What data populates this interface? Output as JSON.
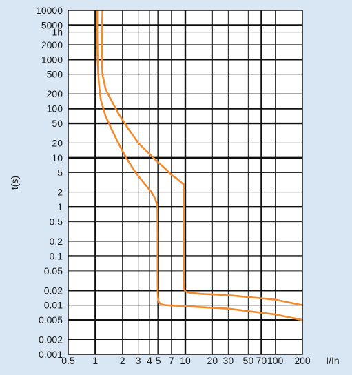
{
  "chart_data": {
    "type": "line",
    "title": "",
    "xlabel": "I/In",
    "ylabel": "t(s)",
    "x_scale": "log",
    "y_scale": "log",
    "xlim": [
      0.5,
      200
    ],
    "ylim": [
      0.001,
      10000
    ],
    "grid": true,
    "x_tick_labels": [
      "0.5",
      "1",
      "2",
      "3",
      "4",
      "5",
      "7",
      "10",
      "20",
      "30",
      "50",
      "70",
      "100",
      "200"
    ],
    "x_tick_values": [
      0.5,
      1,
      2,
      3,
      4,
      5,
      7,
      10,
      20,
      30,
      50,
      70,
      100,
      200
    ],
    "y_tick_labels": [
      "10000",
      "5000",
      "1h",
      "2000",
      "1000",
      "500",
      "200",
      "100",
      "50",
      "20",
      "10",
      "5",
      "2",
      "1",
      "0.5",
      "0.2",
      "0.1",
      "0.05",
      "0.02",
      "0.01",
      "0.005",
      "0.002",
      "0.001"
    ],
    "y_tick_values": [
      10000,
      5000,
      3600,
      2000,
      1000,
      500,
      200,
      100,
      50,
      20,
      10,
      5,
      2,
      1,
      0.5,
      0.2,
      0.1,
      0.05,
      0.02,
      0.01,
      0.005,
      0.002,
      0.001
    ],
    "x_major_lines": [
      1,
      5,
      10,
      70
    ],
    "y_major_lines": [
      5000,
      1000,
      100,
      50,
      10,
      1,
      0.1,
      0.02,
      0.005
    ],
    "line_color": "#f08a2c",
    "series": [
      {
        "x": [
          1.05,
          1.05,
          1.06,
          1.08,
          1.1,
          1.15,
          1.3,
          1.5,
          1.8,
          2.2,
          2.8,
          3.5,
          4.2,
          4.6,
          4.8,
          4.9,
          4.92,
          4.92,
          4.95,
          5.05,
          5.3,
          6,
          10,
          30,
          100,
          200
        ],
        "y": [
          10000,
          3000,
          1000,
          500,
          300,
          150,
          70,
          40,
          20,
          10,
          5,
          3,
          2,
          1.5,
          1.2,
          1.0,
          0.3,
          0.03,
          0.015,
          0.012,
          0.0105,
          0.01,
          0.0095,
          0.0085,
          0.0065,
          0.005
        ]
      },
      {
        "x": [
          1.2,
          1.18,
          1.18,
          1.2,
          1.3,
          1.5,
          1.8,
          2.3,
          3,
          4,
          5,
          6,
          7,
          8,
          9.3,
          9.6,
          9.6,
          9.6,
          9.7,
          10,
          11,
          15,
          30,
          100,
          200
        ],
        "y": [
          10000,
          3000,
          1000,
          500,
          250,
          150,
          80,
          40,
          20,
          12,
          8,
          6,
          4.5,
          3.8,
          3.0,
          2.9,
          1,
          0.03,
          0.022,
          0.019,
          0.018,
          0.017,
          0.016,
          0.013,
          0.01
        ]
      }
    ]
  }
}
